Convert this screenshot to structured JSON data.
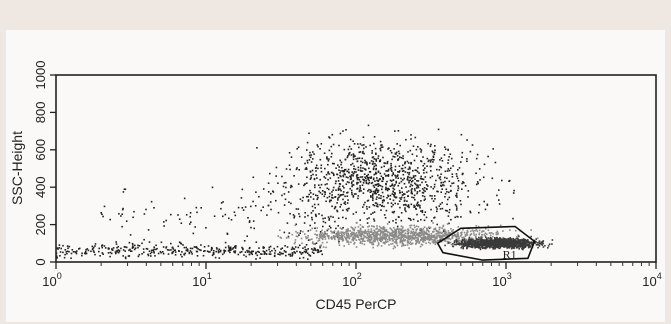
{
  "chart_data": {
    "type": "scatter",
    "xlabel": "CD45 PerCP",
    "ylabel": "SSC-Height",
    "xscale": "log",
    "xlim": [
      1,
      10000
    ],
    "ylim": [
      0,
      1000
    ],
    "grid": false,
    "x_ticks": [
      {
        "value": 1,
        "base": "10",
        "exp": "0"
      },
      {
        "value": 10,
        "base": "10",
        "exp": "1"
      },
      {
        "value": 100,
        "base": "10",
        "exp": "2"
      },
      {
        "value": 1000,
        "base": "10",
        "exp": "3"
      },
      {
        "value": 10000,
        "base": "10",
        "exp": "4"
      }
    ],
    "y_ticks": [
      {
        "value": 0,
        "label": "0"
      },
      {
        "value": 200,
        "label": "200"
      },
      {
        "value": 400,
        "label": "400"
      },
      {
        "value": 600,
        "label": "600"
      },
      {
        "value": 800,
        "label": "800"
      },
      {
        "value": 1000,
        "label": "1000"
      }
    ],
    "populations": [
      {
        "id": "debris",
        "x_range": [
          1,
          60
        ],
        "y_center": 60,
        "y_spread": 35,
        "density": "medium"
      },
      {
        "id": "scattered-low",
        "x_range": [
          2,
          80
        ],
        "y_center": 220,
        "y_spread": 160,
        "density": "sparse"
      },
      {
        "id": "granulocytes",
        "x_center": 150,
        "y_center": 430,
        "y_spread": 220,
        "density": "high"
      },
      {
        "id": "monocytes",
        "x_center": 200,
        "y_center": 140,
        "y_spread": 50,
        "density": "high"
      },
      {
        "id": "lymphocytes",
        "x_center": 900,
        "y_center": 100,
        "y_spread": 25,
        "density": "high"
      }
    ],
    "gate": {
      "name": "R1",
      "vertices": [
        [
          380,
          50
        ],
        [
          350,
          100
        ],
        [
          500,
          180
        ],
        [
          1150,
          190
        ],
        [
          1550,
          110
        ],
        [
          1400,
          20
        ],
        [
          700,
          10
        ]
      ]
    }
  }
}
